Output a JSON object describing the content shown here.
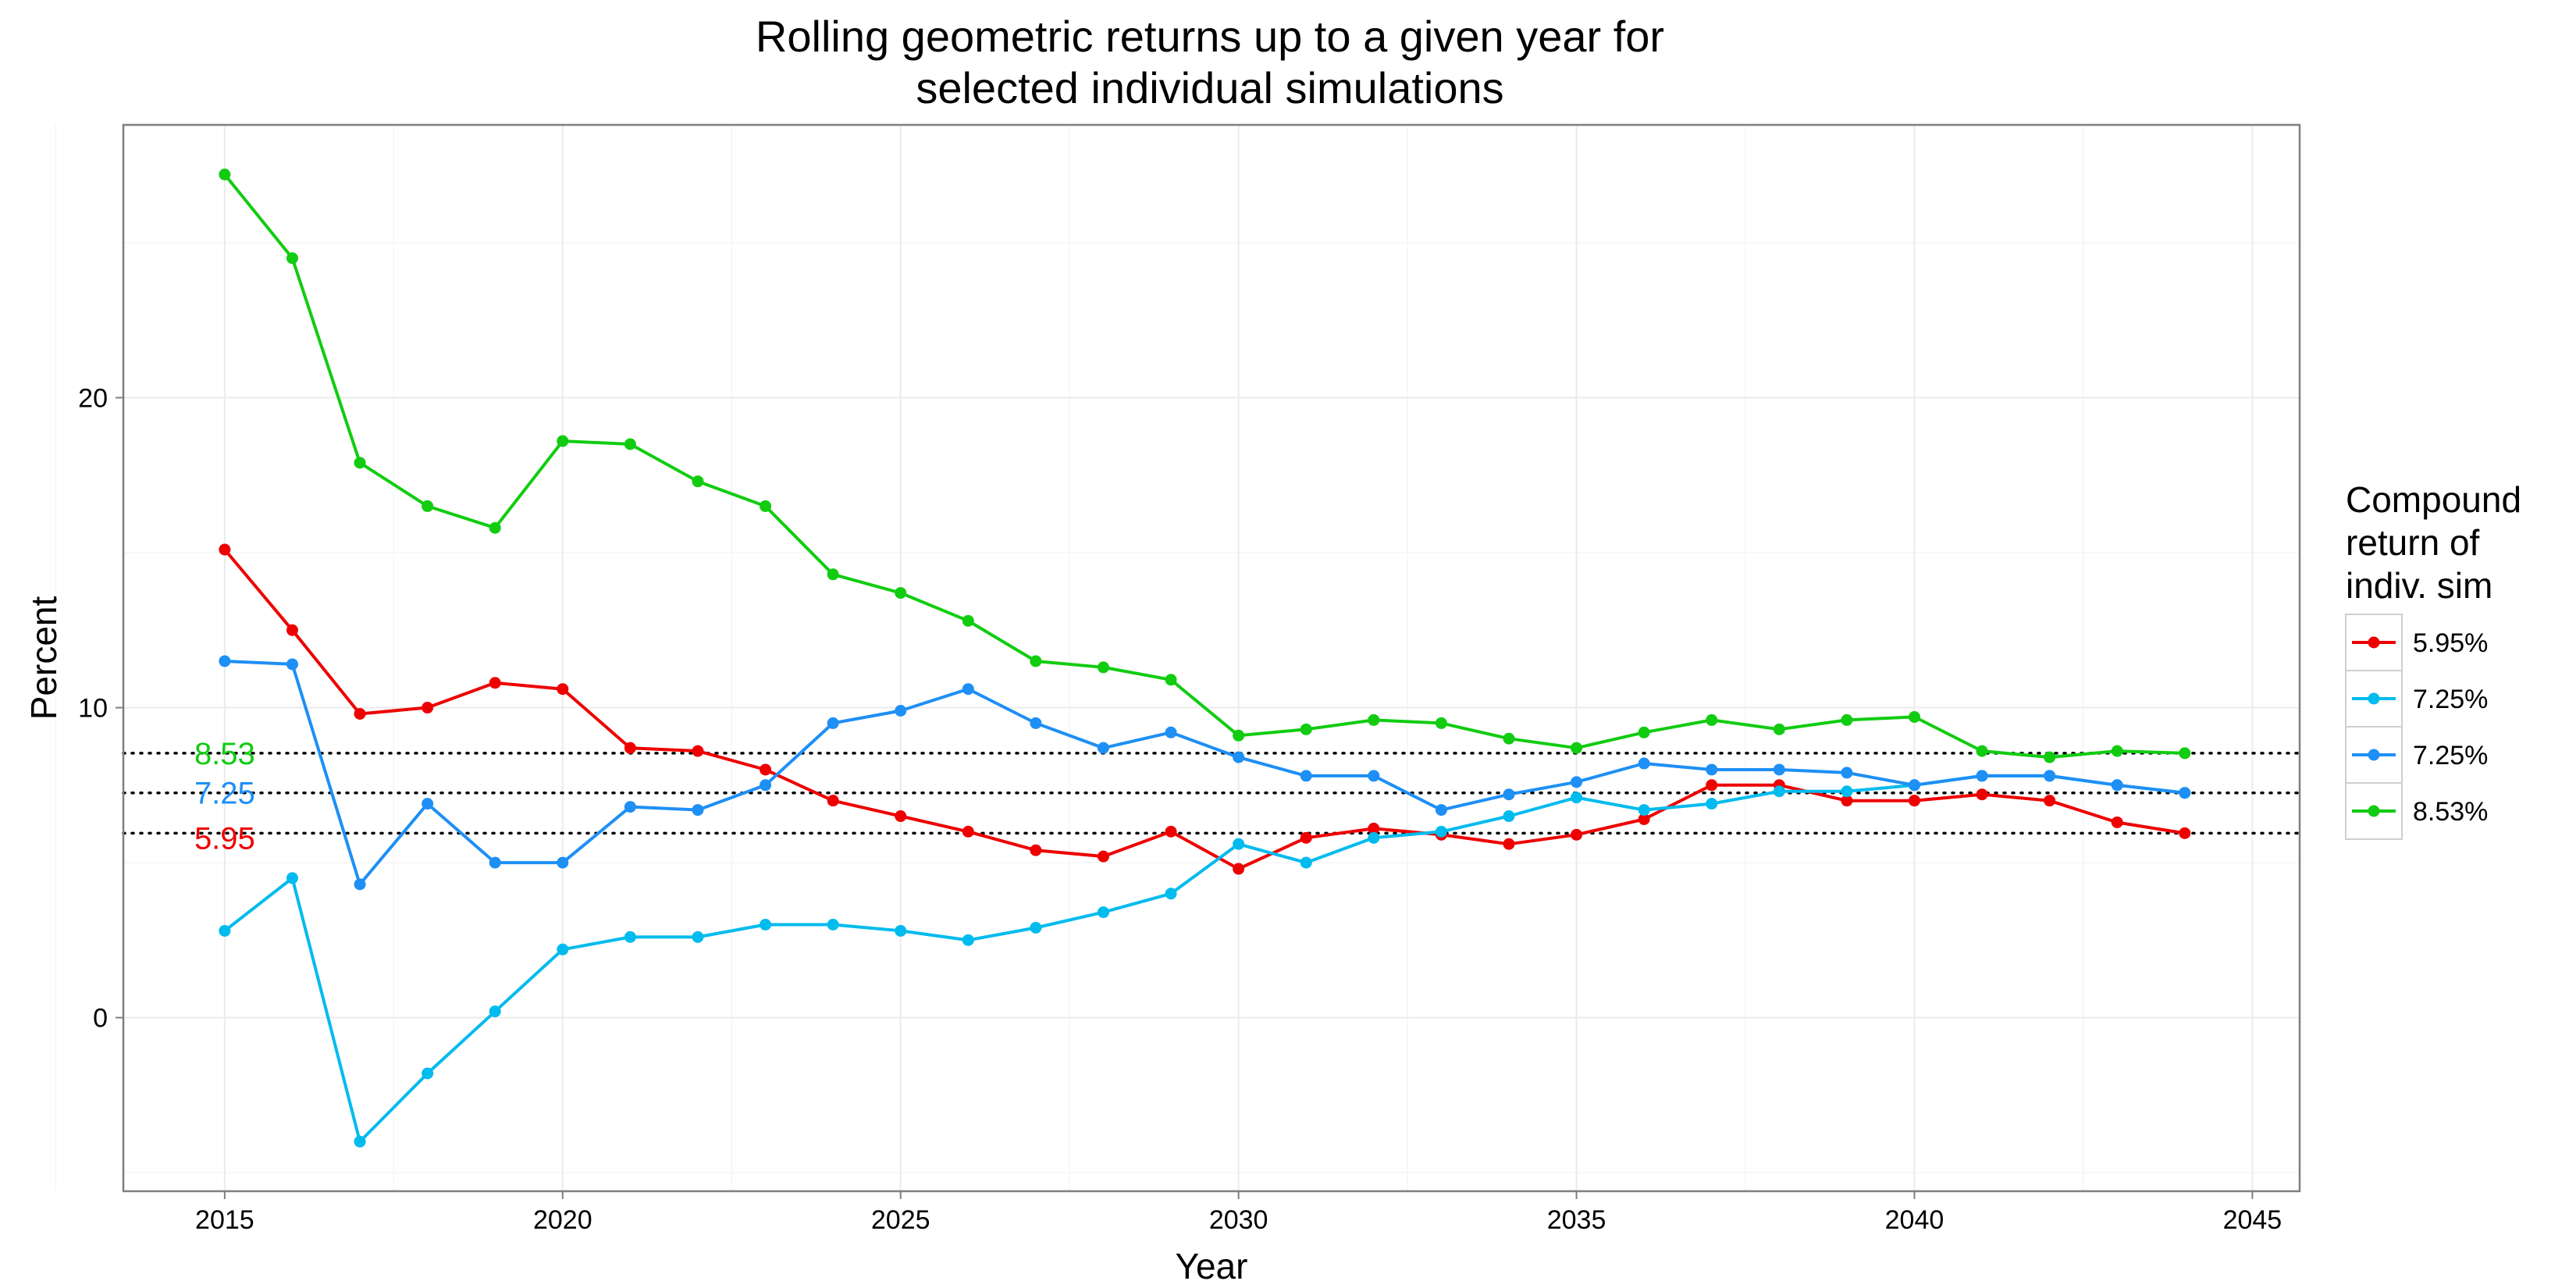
{
  "chart_data": {
    "type": "line",
    "title": [
      "Rolling geometric returns up to a given year for",
      "selected individual simulations"
    ],
    "xlabel": "Year",
    "ylabel": "Percent",
    "xlim": [
      2013.5,
      2045.7
    ],
    "ylim": [
      -5.6,
      28.8
    ],
    "x_ticks": [
      2015,
      2020,
      2025,
      2030,
      2035,
      2040,
      2045
    ],
    "y_ticks": [
      0,
      10,
      20
    ],
    "grid": true,
    "legend": {
      "title": [
        "Compound",
        "return of",
        "indiv. sim"
      ],
      "placement": "right"
    },
    "x": [
      2015,
      2016,
      2017,
      2018,
      2019,
      2020,
      2021,
      2022,
      2023,
      2024,
      2025,
      2026,
      2027,
      2028,
      2029,
      2030,
      2031,
      2032,
      2033,
      2034,
      2035,
      2036,
      2037,
      2038,
      2039,
      2040,
      2041,
      2042,
      2043,
      2044
    ],
    "series": [
      {
        "name": "5.95%",
        "color": "#ee0000",
        "values": [
          15.1,
          12.5,
          9.8,
          10.0,
          10.8,
          10.6,
          8.7,
          8.6,
          8.0,
          7.0,
          6.5,
          6.0,
          5.4,
          5.2,
          6.0,
          4.8,
          5.8,
          6.1,
          5.9,
          5.6,
          5.9,
          6.4,
          7.5,
          7.5,
          7.0,
          7.0,
          7.2,
          7.0,
          6.3,
          5.95
        ]
      },
      {
        "name": "7.25%",
        "color": "#00bbee",
        "values": [
          2.8,
          4.5,
          -4.0,
          -1.8,
          0.2,
          2.2,
          2.6,
          2.6,
          3.0,
          3.0,
          2.8,
          2.5,
          2.9,
          3.4,
          4.0,
          5.6,
          5.0,
          5.8,
          6.0,
          6.5,
          7.1,
          6.7,
          6.9,
          7.3,
          7.3,
          7.5,
          7.8,
          7.8,
          7.5,
          7.25
        ]
      },
      {
        "name": "7.25%",
        "color": "#1e8ff5",
        "values": [
          11.5,
          11.4,
          4.3,
          6.9,
          5.0,
          5.0,
          6.8,
          6.7,
          7.5,
          9.5,
          9.9,
          10.6,
          9.5,
          8.7,
          9.2,
          8.4,
          7.8,
          7.8,
          6.7,
          7.2,
          7.6,
          8.2,
          8.0,
          8.0,
          7.9,
          7.5,
          7.8,
          7.8,
          7.5,
          7.25
        ]
      },
      {
        "name": "8.53%",
        "color": "#11cc11",
        "values": [
          27.2,
          24.5,
          17.9,
          16.5,
          15.8,
          18.6,
          18.5,
          17.3,
          16.5,
          14.3,
          13.7,
          12.8,
          11.5,
          11.3,
          10.9,
          9.1,
          9.3,
          9.6,
          9.5,
          9.0,
          8.7,
          9.2,
          9.6,
          9.3,
          9.6,
          9.7,
          8.6,
          8.4,
          8.6,
          8.53
        ]
      }
    ],
    "reference_lines": [
      {
        "value": 8.53,
        "label": "8.53",
        "color": "#11cc11"
      },
      {
        "value": 7.25,
        "label": "7.25",
        "color": "#1e8ff5"
      },
      {
        "value": 5.95,
        "label": "5.95",
        "color": "#ee0000"
      }
    ]
  }
}
